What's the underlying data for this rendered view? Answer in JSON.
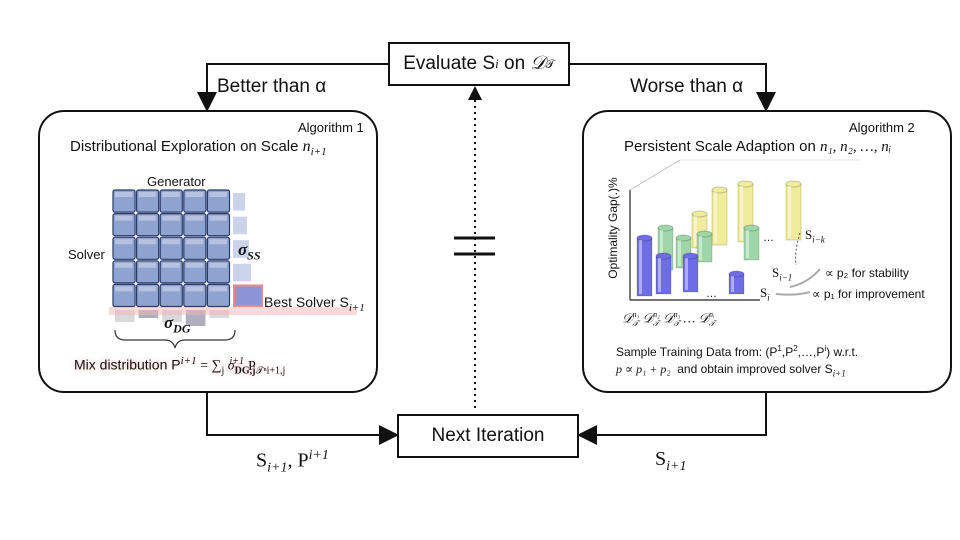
{
  "top": {
    "evaluate_label": "Evaluate S",
    "evaluate_sub": "i",
    "evaluate_on": " on ",
    "evaluate_set": "𝒟",
    "evaluate_set_sub": "𝒯",
    "better_label": "Better than α",
    "worse_label": "Worse than α"
  },
  "bottom": {
    "next_label": "Next Iteration",
    "left_output": "S",
    "left_output_sub": "i+1",
    "left_output_p": ", P",
    "left_output_p_sup": "i+1",
    "right_output": "S",
    "right_output_sub": "i+1"
  },
  "algo1": {
    "tag": "Algorithm 1",
    "title": "Distributional Exploration on Scale ",
    "title_var": "n",
    "title_var_sub": "i+1",
    "generator_label": "Generator",
    "solver_label": "Solver",
    "sigma_ss": "σ",
    "sigma_ss_sub": "SS",
    "sigma_dg": "σ",
    "sigma_dg_sub": "DG",
    "best_solver": "Best Solver S",
    "best_solver_sub": "i+1",
    "mix_label": "Mix distribution P",
    "mix_sup": "i+1",
    "mix_formula": " = ∑",
    "mix_sum_sub": "j",
    "mix_sigma": " σ",
    "mix_sigma_sub": "DG,j",
    "mix_sigma_sup": "i+1",
    "mix_p": "P",
    "mix_p_sub": "𝒯ⁿi+1,j",
    "grid_rows": 5,
    "grid_cols": 5
  },
  "algo2": {
    "tag": "Algorithm 2",
    "title": "Persistent Scale Adaption on ",
    "title_vars": "n₁, n₂, …, nᵢ",
    "y_axis": "Optimality Gap(.)%",
    "label_si_k": "S",
    "label_si_k_sub": "i−k",
    "label_si_1": "S",
    "label_si_1_sub": "i−1",
    "label_si": "S",
    "label_si_sub": "i",
    "ellipsis": "…",
    "stability": "∝ p₂ for stability",
    "improvement": "∝ p₁ for improvement",
    "x_labels": [
      "𝒟",
      "𝒟",
      "𝒟",
      "…",
      "𝒟"
    ],
    "x_sup": [
      "n₁",
      "n₂",
      "n₃",
      "",
      "nᵢ"
    ],
    "x_sub": "𝒯",
    "sample_line1": "Sample Training Data from: (P",
    "sample_p1": "1",
    "sample_mid": ",P",
    "sample_p2": "2",
    "sample_dots": ",…,P",
    "sample_pi": "i",
    "sample_end": ") w.r.t.",
    "sample_line2a": "p ∝ p₁ + p₂",
    "sample_line2b": "  and obtain improved solver S",
    "sample_line2_sub": "i+1",
    "bars": [
      {
        "name": "series-blue-1",
        "color": "#6f6ce8",
        "value": 0.86
      },
      {
        "name": "series-green-1",
        "color": "#9fd6a8",
        "value": 0.78
      },
      {
        "name": "series-yellow-1",
        "color": "#f1ec9c",
        "value": 0.62
      }
    ]
  },
  "colors": {
    "grid_cell": "#8ea3cf",
    "grid_border": "#2b3a66",
    "highlight": "#f4b5b5",
    "shadow_bar": "#b9c6e4",
    "dg_dark": "#8c8ca0"
  }
}
